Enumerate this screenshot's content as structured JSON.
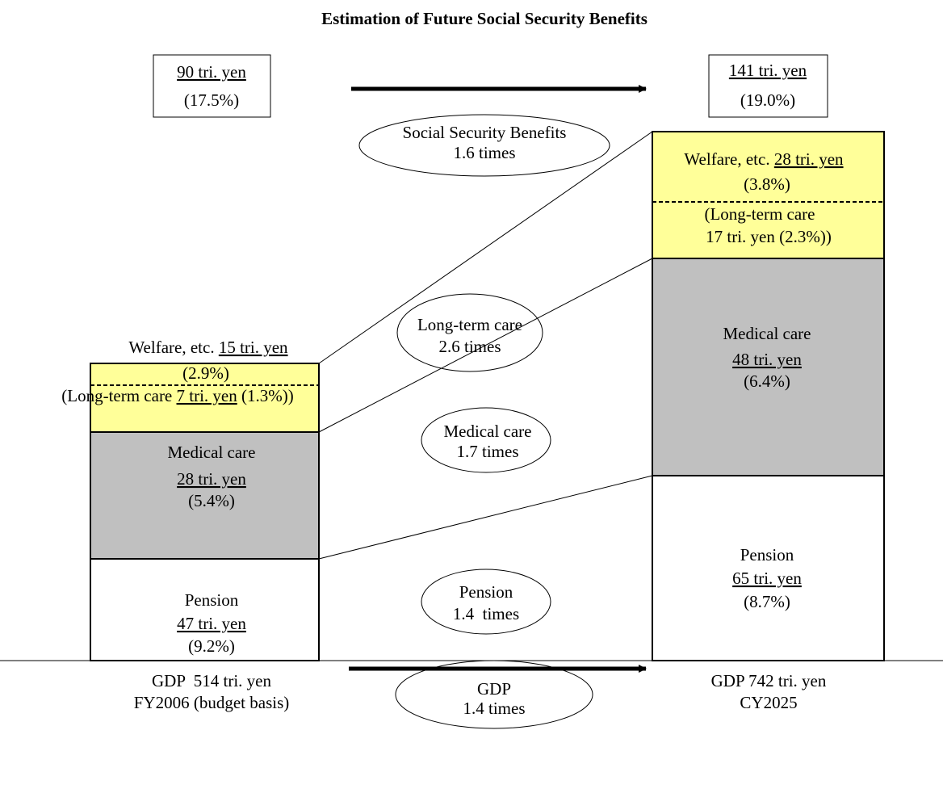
{
  "title": "Estimation of Future Social Security Benefits",
  "left": {
    "total": "90 tri. yen",
    "total_share": "(17.5%)",
    "welfare": {
      "label": "Welfare, etc.",
      "amount": "15 tri. yen",
      "share": "(2.9%)"
    },
    "long_term_care": {
      "label": "(Long-term care",
      "amount": "7 tri. yen",
      "share": "(1.3%))"
    },
    "medical": {
      "label": "Medical care",
      "amount": "28 tri. yen",
      "share": "(5.4%)"
    },
    "pension": {
      "label": "Pension",
      "amount": "47 tri. yen",
      "share": "(9.2%)"
    },
    "gdp": "GDP  514 tri. yen",
    "period": "FY2006 (budget basis)"
  },
  "right": {
    "total": "141 tri. yen",
    "total_share": "(19.0%)",
    "welfare": {
      "label": "Welfare, etc.",
      "amount": "28 tri. yen",
      "share": "(3.8%)"
    },
    "long_term_care": {
      "label": "(Long-term care",
      "detail": "17 tri. yen (2.3%))"
    },
    "medical": {
      "label": "Medical care",
      "amount": "48 tri. yen",
      "share": "(6.4%)"
    },
    "pension": {
      "label": "Pension",
      "amount": "65 tri. yen",
      "share": "(8.7%)"
    },
    "gdp": "GDP 742 tri. yen",
    "period": "CY2025"
  },
  "ratios": {
    "social_security": {
      "label": "Social Security Benefits",
      "value": "1.6 times"
    },
    "long_term_care": {
      "label": "Long-term care",
      "value": "2.6 times"
    },
    "medical": {
      "label": "Medical care",
      "value": "1.7 times"
    },
    "pension": {
      "label": "Pension",
      "value": "1.4  times"
    },
    "gdp": {
      "label": "GDP",
      "value": "1.4 times"
    }
  }
}
